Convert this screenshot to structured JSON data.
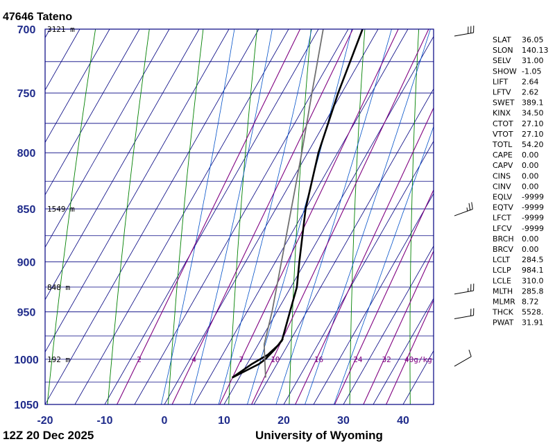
{
  "header": {
    "station": "47646 Tateno",
    "time": "12Z 20 Dec 2025",
    "credit": "University of Wyoming"
  },
  "colors": {
    "frame": "#000080",
    "isotherm": "#000080",
    "dry_adiabat": "#008000",
    "moist_adiabat": "#0050c8",
    "mixing_ratio": "#800080",
    "temperature": "#000000",
    "dewpoint": "#000000",
    "parcel": "#707070",
    "axis_label": "#1e2a8a"
  },
  "chart_data": {
    "type": "line",
    "title": "47646 Tateno",
    "pressure_ticks": [
      700,
      750,
      800,
      850,
      900,
      950,
      1000,
      1050
    ],
    "pressure_minor": [
      725,
      775,
      825,
      875,
      925,
      975,
      1025
    ],
    "temperature_ticks": [
      -20,
      -10,
      0,
      10,
      20,
      30,
      40
    ],
    "isotherm_range": [
      -100,
      50
    ],
    "ylim": [
      1050,
      700
    ],
    "xlim": [
      -20,
      45
    ],
    "height_labels": [
      {
        "p": 700,
        "text": "3121 m"
      },
      {
        "p": 850,
        "text": "1549 m"
      },
      {
        "p": 925,
        "text": "848 m"
      },
      {
        "p": 1000,
        "text": "192 m"
      }
    ],
    "mixing_ratio_labels": [
      "2",
      "4",
      "7",
      "10",
      "16",
      "24",
      "32",
      "40g/kg"
    ],
    "mixing_ratio_values": [
      2,
      4,
      7,
      10,
      16,
      24,
      32,
      40
    ],
    "dry_adiabat_thetas": [
      230,
      240,
      250,
      260,
      270,
      280,
      290,
      300,
      310,
      320,
      330,
      340
    ],
    "moist_adiabat_thetaw": [
      270,
      275,
      280,
      285,
      290,
      295,
      300
    ],
    "series": [
      {
        "kind": "temperature",
        "p": [
          1020,
          1005,
          1000,
          990,
          980,
          950,
          925,
          900,
          850,
          800,
          750,
          700
        ],
        "t": [
          8.8,
          12.0,
          12.6,
          13.2,
          13.6,
          12.2,
          11.0,
          9.0,
          5.0,
          1.8,
          -0.6,
          -2.6
        ]
      },
      {
        "kind": "dewpoint",
        "p": [
          1020,
          1005,
          995,
          985,
          978
        ],
        "t": [
          8.8,
          10.8,
          12.6,
          13.4,
          13.6
        ]
      },
      {
        "kind": "parcel",
        "p": [
          1020,
          1000,
          984.1,
          950,
          900,
          850,
          800,
          750,
          700
        ],
        "t": [
          14.4,
          12.5,
          11.0,
          9.2,
          6.0,
          2.6,
          -1.0,
          -5.0,
          -9.2
        ]
      }
    ],
    "wind_barbs": [
      {
        "p": 700,
        "dir": 260,
        "kt": 30
      },
      {
        "p": 850,
        "dir": 250,
        "kt": 25
      },
      {
        "p": 925,
        "dir": 260,
        "kt": 25
      },
      {
        "p": 950,
        "dir": 260,
        "kt": 20
      },
      {
        "p": 1000,
        "dir": 240,
        "kt": 10
      }
    ]
  },
  "indices": [
    {
      "key": "SLAT",
      "value": "36.05"
    },
    {
      "key": "SLON",
      "value": "140.13"
    },
    {
      "key": "SELV",
      "value": "31.00"
    },
    {
      "key": "SHOW",
      "value": "-1.05"
    },
    {
      "key": "LIFT",
      "value": "2.64"
    },
    {
      "key": "LFTV",
      "value": "2.62"
    },
    {
      "key": "SWET",
      "value": "389.1"
    },
    {
      "key": "KINX",
      "value": "34.50"
    },
    {
      "key": "CTOT",
      "value": "27.10"
    },
    {
      "key": "VTOT",
      "value": "27.10"
    },
    {
      "key": "TOTL",
      "value": "54.20"
    },
    {
      "key": "CAPE",
      "value": "0.00"
    },
    {
      "key": "CAPV",
      "value": "0.00"
    },
    {
      "key": "CINS",
      "value": "0.00"
    },
    {
      "key": "CINV",
      "value": "0.00"
    },
    {
      "key": "EQLV",
      "value": "-9999"
    },
    {
      "key": "EQTV",
      "value": "-9999"
    },
    {
      "key": "LFCT",
      "value": "-9999"
    },
    {
      "key": "LFCV",
      "value": "-9999"
    },
    {
      "key": "BRCH",
      "value": "0.00"
    },
    {
      "key": "BRCV",
      "value": "0.00"
    },
    {
      "key": "LCLT",
      "value": "284.5"
    },
    {
      "key": "LCLP",
      "value": "984.1"
    },
    {
      "key": "LCLE",
      "value": "310.0"
    },
    {
      "key": "MLTH",
      "value": "285.8"
    },
    {
      "key": "MLMR",
      "value": "8.72"
    },
    {
      "key": "THCK",
      "value": "5528."
    },
    {
      "key": "PWAT",
      "value": "31.91"
    }
  ]
}
